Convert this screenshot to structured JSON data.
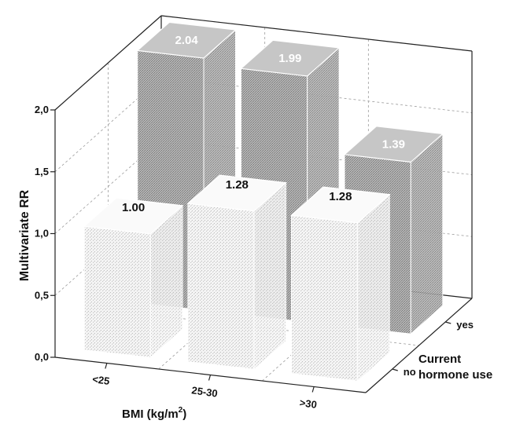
{
  "chart_data": {
    "type": "bar3d",
    "title": "",
    "ylabel": "Multivariate RR",
    "xlabel_main": "BMI (kg/m",
    "xlabel_sup": "2",
    "xlabel_close": ")",
    "zlabel_line1": "Current",
    "zlabel_line2": "hormone use",
    "ylim": [
      0,
      2.0
    ],
    "yticks": [
      "0,0",
      "0,5",
      "1,0",
      "1,5",
      "2,0"
    ],
    "categories": [
      "<25",
      "25-30",
      ">30"
    ],
    "depth_categories": [
      "no",
      "yes"
    ],
    "series": [
      {
        "name": "yes",
        "values": [
          2.04,
          1.99,
          1.39
        ],
        "labels": [
          "2.04",
          "1.99",
          "1.39"
        ]
      },
      {
        "name": "no",
        "values": [
          1.0,
          1.28,
          1.28
        ],
        "labels": [
          "1.00",
          "1.28",
          "1.28"
        ]
      }
    ],
    "grid": true,
    "colors": {
      "yes_bar": "#9a9a9a",
      "no_bar": "#e4e4e4",
      "axis": "#222222",
      "grid": "#9c9c9c"
    }
  }
}
